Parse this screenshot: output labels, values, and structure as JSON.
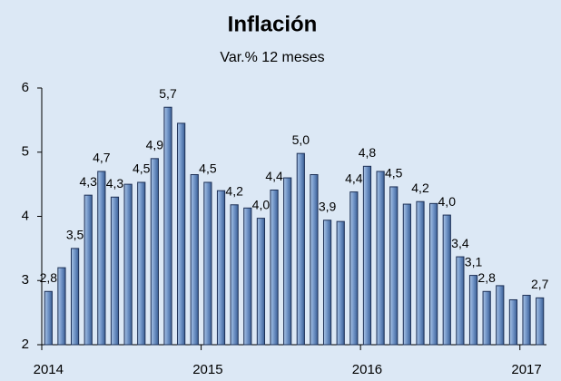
{
  "chart_data": {
    "type": "bar",
    "title": "Inflación",
    "subtitle": "Var.% 12 meses",
    "categories": [
      "2014",
      null,
      null,
      null,
      null,
      null,
      null,
      null,
      null,
      null,
      null,
      null,
      "2015",
      null,
      null,
      null,
      null,
      null,
      null,
      null,
      null,
      null,
      null,
      null,
      "2016",
      null,
      null,
      null,
      null,
      null,
      null,
      null,
      null,
      null,
      null,
      null,
      "2017",
      null
    ],
    "values": [
      2.83,
      3.2,
      3.5,
      4.33,
      4.7,
      4.3,
      4.5,
      4.53,
      4.9,
      5.7,
      5.45,
      4.65,
      4.53,
      4.4,
      4.18,
      4.13,
      3.97,
      4.41,
      4.6,
      4.98,
      4.65,
      3.94,
      3.92,
      4.38,
      4.78,
      4.7,
      4.46,
      4.19,
      4.23,
      4.2,
      4.02,
      3.37,
      3.08,
      2.83,
      2.92,
      2.7,
      2.77,
      2.73
    ],
    "value_labels": [
      "2,8",
      null,
      "3,5",
      "4,3",
      "4,7",
      "4,3",
      null,
      "4,5",
      "4,9",
      "5,7",
      null,
      null,
      "4,5",
      null,
      "4,2",
      null,
      "4,0",
      "4,4",
      null,
      "5,0",
      null,
      "3,9",
      null,
      "4,4",
      "4,8",
      null,
      "4,5",
      null,
      "4,2",
      null,
      "4,0",
      "3,4",
      "3,1",
      "2,8",
      null,
      null,
      null,
      "2,7"
    ],
    "color": "#7fa3d3",
    "ylim": [
      2,
      6
    ],
    "yticks": [
      2,
      3,
      4,
      5,
      6
    ],
    "grid": false
  }
}
